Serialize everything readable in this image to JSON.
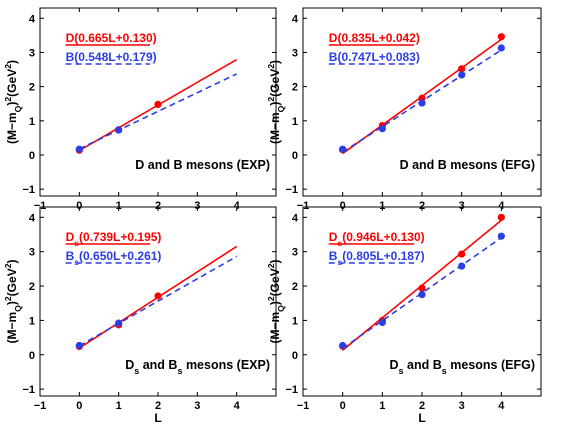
{
  "colors": {
    "red": "#ff0000",
    "blue": "#2b3ee6",
    "axis": "#000000"
  },
  "chart_data": [
    {
      "type": "scatter",
      "panel_label": "D and B mesons (EXP)",
      "ylabel": "(M−m_Q)^2(GeV^2)",
      "xlabel": "",
      "xlim": [
        -1,
        5
      ],
      "ylim": [
        -1.2,
        4.3
      ],
      "xticks": [
        -1,
        0,
        1,
        2,
        3,
        4
      ],
      "yticks": [
        -1,
        0,
        1,
        2,
        3,
        4
      ],
      "series": [
        {
          "name": "D",
          "fit_label": "D(0.665L+0.130)",
          "style": "solid",
          "color": "#ff0000",
          "x": [
            0,
            1,
            2
          ],
          "y": [
            0.14,
            0.74,
            1.48
          ],
          "slope": 0.665,
          "intercept": 0.13,
          "fit_x": [
            0,
            4
          ]
        },
        {
          "name": "B",
          "fit_label": "B(0.548L+0.179)",
          "style": "dashed",
          "color": "#2b3ee6",
          "x": [
            0,
            1
          ],
          "y": [
            0.17,
            0.73
          ],
          "slope": 0.548,
          "intercept": 0.179,
          "fit_x": [
            0,
            4
          ]
        }
      ]
    },
    {
      "type": "scatter",
      "panel_label": "D and B mesons (EFG)",
      "ylabel": "(M−m_Q)^2(GeV^2)",
      "xlabel": "",
      "xlim": [
        -1,
        5
      ],
      "ylim": [
        -1.2,
        4.3
      ],
      "xticks": [
        -1,
        0,
        1,
        2,
        3,
        4
      ],
      "yticks": [
        -1,
        0,
        1,
        2,
        3,
        4
      ],
      "series": [
        {
          "name": "D",
          "fit_label": "D(0.835L+0.042)",
          "style": "solid",
          "color": "#ff0000",
          "x": [
            0,
            1,
            2,
            3,
            4
          ],
          "y": [
            0.15,
            0.86,
            1.66,
            2.52,
            3.46
          ],
          "slope": 0.835,
          "intercept": 0.042,
          "fit_x": [
            0,
            4
          ]
        },
        {
          "name": "B",
          "fit_label": "B(0.747L+0.083)",
          "style": "dashed",
          "color": "#2b3ee6",
          "x": [
            0,
            1,
            2,
            3,
            4
          ],
          "y": [
            0.17,
            0.77,
            1.52,
            2.34,
            3.13
          ],
          "slope": 0.747,
          "intercept": 0.083,
          "fit_x": [
            0,
            4
          ]
        }
      ]
    },
    {
      "type": "scatter",
      "panel_label": "D_s and B_s mesons (EXP)",
      "ylabel": "(M−m_Q)^2(GeV^2)",
      "xlabel": "L",
      "xlim": [
        -1,
        5
      ],
      "ylim": [
        -1.2,
        4.3
      ],
      "xticks": [
        -1,
        0,
        1,
        2,
        3,
        4
      ],
      "yticks": [
        -1,
        0,
        1,
        2,
        3,
        4
      ],
      "series": [
        {
          "name": "D_s",
          "fit_label": "D_s(0.739L+0.195)",
          "style": "solid",
          "color": "#ff0000",
          "x": [
            0,
            1,
            2
          ],
          "y": [
            0.24,
            0.87,
            1.71
          ],
          "slope": 0.739,
          "intercept": 0.195,
          "fit_x": [
            0,
            4
          ]
        },
        {
          "name": "B_s",
          "fit_label": "B_s(0.650L+0.261)",
          "style": "dashed",
          "color": "#2b3ee6",
          "x": [
            0,
            1
          ],
          "y": [
            0.27,
            0.92
          ],
          "slope": 0.65,
          "intercept": 0.261,
          "fit_x": [
            0,
            4
          ]
        }
      ]
    },
    {
      "type": "scatter",
      "panel_label": "D_s and B_s mesons (EFG)",
      "ylabel": "(M−m_Q)^2(GeV^2)",
      "xlabel": "L",
      "xlim": [
        -1,
        5
      ],
      "ylim": [
        -1.2,
        4.3
      ],
      "xticks": [
        -1,
        0,
        1,
        2,
        3,
        4
      ],
      "yticks": [
        -1,
        0,
        1,
        2,
        3,
        4
      ],
      "series": [
        {
          "name": "D_s",
          "fit_label": "D_s(0.946L+0.130)",
          "style": "solid",
          "color": "#ff0000",
          "x": [
            0,
            1,
            2,
            3,
            4
          ],
          "y": [
            0.25,
            1.0,
            1.94,
            2.93,
            4.0
          ],
          "slope": 0.946,
          "intercept": 0.13,
          "fit_x": [
            0,
            4
          ]
        },
        {
          "name": "B_s",
          "fit_label": "B_s(0.805L+0.187)",
          "style": "dashed",
          "color": "#2b3ee6",
          "x": [
            0,
            1,
            2,
            3,
            4
          ],
          "y": [
            0.27,
            0.94,
            1.75,
            2.58,
            3.45
          ],
          "slope": 0.805,
          "intercept": 0.187,
          "fit_x": [
            0,
            4
          ]
        }
      ]
    }
  ]
}
